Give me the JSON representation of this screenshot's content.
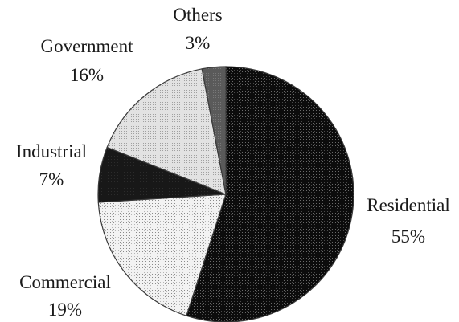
{
  "chart_data": {
    "type": "pie",
    "title": "",
    "slices": [
      {
        "label": "Residential",
        "value": 55,
        "value_label": "55%",
        "fill": "dense-dark-dots"
      },
      {
        "label": "Commercial",
        "value": 19,
        "value_label": "19%",
        "fill": "light-dots"
      },
      {
        "label": "Industrial",
        "value": 7,
        "value_label": "7%",
        "fill": "solid-dark"
      },
      {
        "label": "Government",
        "value": 16,
        "value_label": "16%",
        "fill": "light-gray-dots"
      },
      {
        "label": "Others",
        "value": 3,
        "value_label": "3%",
        "fill": "medium-gray"
      }
    ],
    "start_angle_deg": 0,
    "direction": "clockwise",
    "colors": {
      "outline": "#3a3a3a",
      "background": "#ffffff",
      "text": "#1a1a1a"
    }
  }
}
